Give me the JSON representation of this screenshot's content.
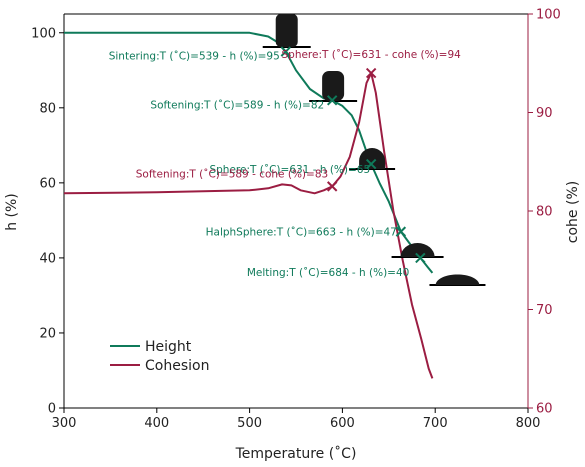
{
  "chart_data": {
    "type": "line",
    "xlabel": "Temperature (˚C)",
    "ylabel_left": "h (%)",
    "ylabel_right": "cohe (%)",
    "xlim": [
      300,
      800
    ],
    "ylim_left": [
      0,
      105
    ],
    "ylim_right": [
      60,
      100
    ],
    "x_ticks": [
      "300",
      "400",
      "500",
      "600",
      "700",
      "800"
    ],
    "y_left_ticks": [
      "0",
      "20",
      "40",
      "60",
      "80",
      "100"
    ],
    "y_right_ticks": [
      "60",
      "70",
      "80",
      "90",
      "100"
    ],
    "colors": {
      "height": "#0f7a5a",
      "cohesion": "#9b1d42"
    },
    "series": [
      {
        "name": "Height",
        "axis": "left",
        "points": [
          [
            300,
            100
          ],
          [
            400,
            100
          ],
          [
            500,
            100
          ],
          [
            520,
            99
          ],
          [
            530,
            97.5
          ],
          [
            539,
            95
          ],
          [
            550,
            90
          ],
          [
            565,
            85
          ],
          [
            580,
            82.5
          ],
          [
            589,
            82
          ],
          [
            600,
            80.5
          ],
          [
            610,
            78
          ],
          [
            618,
            74
          ],
          [
            625,
            69
          ],
          [
            631,
            65
          ],
          [
            640,
            60
          ],
          [
            650,
            55
          ],
          [
            663,
            47
          ],
          [
            675,
            43
          ],
          [
            684,
            40
          ],
          [
            692,
            37.5
          ],
          [
            697,
            36
          ]
        ]
      },
      {
        "name": "Cohesion",
        "axis": "right",
        "points": [
          [
            300,
            81.8
          ],
          [
            400,
            81.9
          ],
          [
            500,
            82.1
          ],
          [
            520,
            82.3
          ],
          [
            535,
            82.7
          ],
          [
            545,
            82.6
          ],
          [
            555,
            82.1
          ],
          [
            570,
            81.8
          ],
          [
            580,
            82.1
          ],
          [
            589,
            82.5
          ],
          [
            598,
            83.5
          ],
          [
            608,
            85.5
          ],
          [
            618,
            89
          ],
          [
            626,
            93
          ],
          [
            631,
            94
          ],
          [
            636,
            92
          ],
          [
            645,
            86
          ],
          [
            655,
            80
          ],
          [
            665,
            75
          ],
          [
            675,
            70.5
          ],
          [
            685,
            67
          ],
          [
            693,
            64
          ],
          [
            697,
            63
          ]
        ]
      }
    ],
    "markers": [
      {
        "series": "height",
        "x": 539,
        "y": 95,
        "label": "Sintering:T (˚C)=539 - h (%)=95",
        "anchor": "end"
      },
      {
        "series": "height",
        "x": 589,
        "y": 82,
        "label": "Softening:T (˚C)=589 - h (%)=82",
        "anchor": "end"
      },
      {
        "series": "height",
        "x": 631,
        "y": 65,
        "label": "Sphere:T (˚C)=631 - h (%)=65",
        "anchor": "end"
      },
      {
        "series": "height",
        "x": 663,
        "y": 47,
        "label": "HalphSphere:T (˚C)=663 - h (%)=47",
        "anchor": "end"
      },
      {
        "series": "height",
        "x": 684,
        "y": 40,
        "label": "Melting:T (˚C)=684 - h (%)=40",
        "anchor": "end"
      },
      {
        "series": "cohesion",
        "x": 589,
        "y": 82.5,
        "label": "Softening:T (˚C)=589 - cohe (%)=83",
        "anchor": "end"
      },
      {
        "series": "cohesion",
        "x": 631,
        "y": 94,
        "label": "Sphere:T (˚C)=631 - cohe (%)=94",
        "anchor": "middle"
      }
    ],
    "shape_icons": [
      {
        "name": "sintering-shape-icon",
        "kind": "tall",
        "x": 540
      },
      {
        "name": "softening-shape-icon",
        "kind": "rounded",
        "x": 590
      },
      {
        "name": "sphere-shape-icon",
        "kind": "sphere",
        "x": 632
      },
      {
        "name": "halfsphere-shape-icon",
        "kind": "halfsphere",
        "x": 681
      },
      {
        "name": "melting-shape-icon",
        "kind": "flat",
        "x": 724
      }
    ],
    "legend": {
      "placement": "bottom-left",
      "items": [
        {
          "label": "Height",
          "color": "#0f7a5a"
        },
        {
          "label": "Cohesion",
          "color": "#9b1d42"
        }
      ]
    }
  }
}
